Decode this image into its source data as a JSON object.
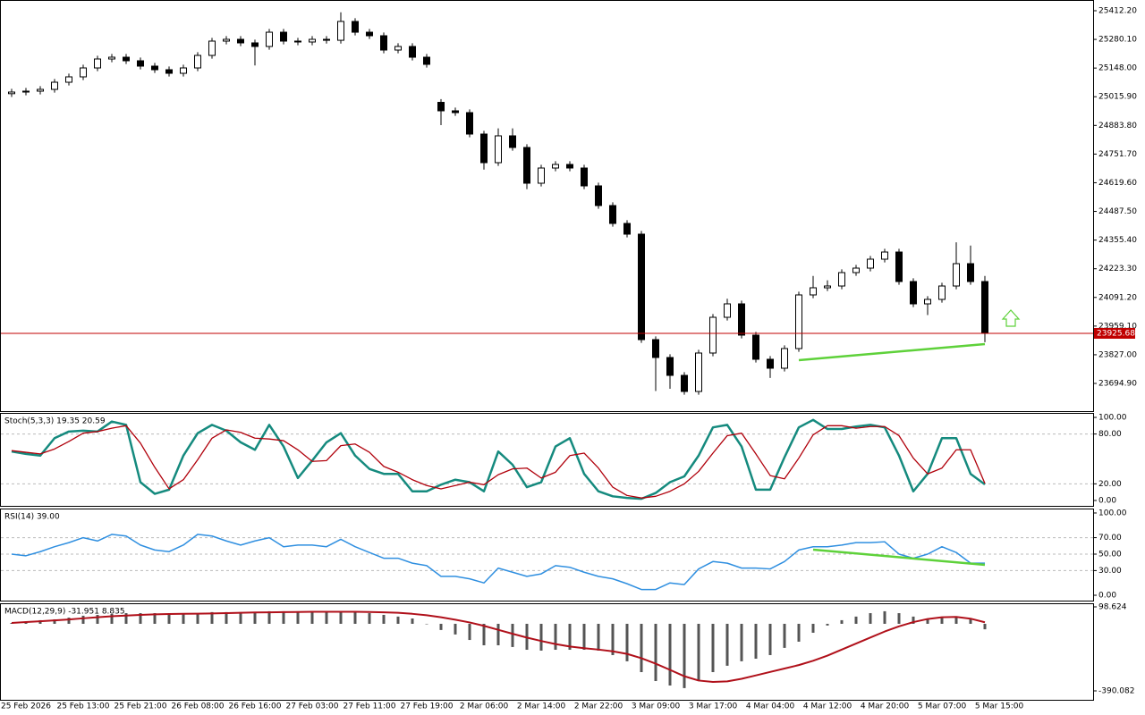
{
  "chart_data": [
    {
      "type": "candlestick",
      "open": [
        25030.0,
        25037.4,
        25041.6,
        25049.8,
        25082.7,
        25107.5,
        25148.6,
        25189.8,
        25198.0,
        25181.6,
        25156.9,
        25140.4,
        25123.9,
        25148.6,
        25206.3,
        25272.2,
        25280.4,
        25264.0,
        25247.5,
        25313.2,
        25272.2,
        25268.1,
        25280.4,
        25276.0,
        25362.8,
        25313.2,
        25296.9,
        25231.0,
        25247.5,
        25198.0,
        24990.0,
        24951.0,
        24942.7,
        24843.9,
        24712.1,
        24835.7,
        24782.1,
        24617.4,
        24687.4,
        24703.9,
        24687.4,
        24605.1,
        24514.5,
        24432.1,
        24382.7,
        23896.8,
        23814.4,
        23732.0,
        23657.9,
        23835.0,
        23999.7,
        24061.5,
        23917.4,
        23806.2,
        23765.0,
        23855.6,
        24102.7,
        24135.6,
        24143.8,
        24205.6,
        24226.2,
        24267.4,
        24300.3,
        24164.4,
        24061.5,
        24082.1,
        24143.8,
        24246.8,
        24164.4
      ],
      "high": [
        25052.4,
        25056.6,
        25064.8,
        25097.7,
        25122.5,
        25163.6,
        25204.8,
        25213.0,
        25213.0,
        25196.6,
        25171.9,
        25155.4,
        25163.6,
        25221.3,
        25287.2,
        25295.4,
        25295.4,
        25279.0,
        25328.2,
        25328.2,
        25287.2,
        25295.4,
        25295.4,
        25405.0,
        25377.8,
        25328.2,
        25311.9,
        25262.5,
        25262.5,
        25213.0,
        25005.0,
        24966.0,
        24957.7,
        24858.9,
        24870.0,
        24870.0,
        24797.1,
        24702.4,
        24718.9,
        24718.9,
        24702.4,
        24620.1,
        24529.5,
        24447.1,
        24397.7,
        23911.8,
        23829.4,
        23747.0,
        23850.0,
        24014.7,
        24085.0,
        24076.5,
        23932.4,
        23821.2,
        23870.6,
        24117.7,
        24190.0,
        24170.0,
        24220.6,
        24241.2,
        24282.4,
        24315.3,
        24315.3,
        24179.4,
        24097.1,
        24158.8,
        24345.0,
        24330.0,
        24190.0
      ],
      "low": [
        25015.0,
        25022.4,
        25026.6,
        25034.8,
        25067.7,
        25092.5,
        25133.6,
        25174.8,
        25166.6,
        25141.9,
        25125.4,
        25108.9,
        25108.9,
        25133.6,
        25191.3,
        25257.2,
        25249.0,
        25160.0,
        25232.5,
        25257.2,
        25253.1,
        25253.1,
        25261.0,
        25261.0,
        25298.2,
        25281.9,
        25216.0,
        25216.0,
        25183.0,
        25150.1,
        24885.0,
        24927.7,
        24828.9,
        24680.0,
        24697.1,
        24767.1,
        24590.0,
        24602.4,
        24672.4,
        24672.4,
        24590.1,
        24499.5,
        24417.1,
        24367.7,
        23881.8,
        23660.0,
        23670.0,
        23642.9,
        23642.9,
        23820.0,
        23984.7,
        23902.4,
        23791.2,
        23720.0,
        23750.0,
        23840.6,
        24087.7,
        24120.6,
        24128.8,
        24190.6,
        24211.2,
        24252.4,
        24149.4,
        24046.5,
        24010.0,
        24067.1,
        24128.8,
        24149.4,
        23885.0
      ],
      "close": [
        25037.4,
        25041.6,
        25049.8,
        25082.7,
        25107.5,
        25148.6,
        25189.8,
        25198.0,
        25181.6,
        25156.9,
        25140.4,
        25123.9,
        25148.6,
        25206.3,
        25272.2,
        25280.4,
        25264.0,
        25247.5,
        25313.2,
        25272.2,
        25268.1,
        25280.4,
        25276.0,
        25362.8,
        25313.2,
        25296.9,
        25231.0,
        25247.5,
        25198.0,
        25165.1,
        24951.0,
        24942.7,
        24843.9,
        24712.1,
        24835.7,
        24782.1,
        24617.4,
        24687.4,
        24703.9,
        24687.4,
        24605.1,
        24514.5,
        24432.1,
        24382.7,
        23896.8,
        23814.4,
        23732.0,
        23657.9,
        23835.0,
        23999.7,
        24061.5,
        23917.4,
        23806.2,
        23765.0,
        23855.6,
        24102.7,
        24135.6,
        24143.8,
        24205.6,
        24226.2,
        24267.4,
        24300.3,
        24164.4,
        24061.5,
        24082.1,
        24143.8,
        24246.8,
        24164.4,
        23925.68
      ],
      "up_color": "#ffffff",
      "down_color": "#000000",
      "ylim": [
        23567.3,
        25461.6
      ],
      "yticks": [
        {
          "value": 25412.2,
          "label": "25412.20"
        },
        {
          "value": 25280.1,
          "label": "25280.10"
        },
        {
          "value": 25148.0,
          "label": "25148.00"
        },
        {
          "value": 25015.9,
          "label": "25015.90"
        },
        {
          "value": 24883.8,
          "label": "24883.80"
        },
        {
          "value": 24751.7,
          "label": "24751.70"
        },
        {
          "value": 24619.6,
          "label": "24619.60"
        },
        {
          "value": 24487.5,
          "label": "24487.50"
        },
        {
          "value": 24355.4,
          "label": "24355.40"
        },
        {
          "value": 24223.3,
          "label": "24223.30"
        },
        {
          "value": 24091.2,
          "label": "24091.20"
        },
        {
          "value": 23959.1,
          "label": "23959.10"
        },
        {
          "value": 23827.0,
          "label": "23827.00"
        },
        {
          "value": 23694.9,
          "label": "23694.90"
        }
      ],
      "price_line": {
        "value": 23925.68,
        "label": "23925.68",
        "color": "#c00000"
      },
      "trend_line": {
        "x": [
          55,
          68
        ],
        "values": [
          23802,
          23876
        ],
        "color": "#5ed13a"
      }
    },
    {
      "type": "line",
      "title": "Stoch(5,3,3) 19.35 20.59",
      "series": [
        {
          "color": "#158a7e",
          "width": 2.5,
          "values": [
            59,
            56,
            54,
            75,
            83,
            84,
            83,
            95,
            91,
            22,
            8,
            13,
            54,
            81,
            91,
            84,
            70,
            61,
            91,
            65,
            27,
            48,
            70,
            81,
            54,
            38,
            32,
            32,
            11,
            11,
            19,
            25,
            22,
            11,
            59,
            43,
            16,
            22,
            65,
            75,
            32,
            11,
            5,
            3,
            2,
            9,
            22,
            29,
            54,
            88,
            91,
            65,
            13,
            13,
            52,
            88,
            97,
            86,
            86,
            89,
            91,
            88,
            54,
            11,
            32,
            75,
            75,
            32,
            19.35
          ]
        },
        {
          "color": "#b0000b",
          "width": 1.3,
          "values": [
            60,
            58,
            56,
            62,
            71,
            81,
            83,
            87,
            90,
            69,
            40,
            14,
            25,
            49,
            75,
            85,
            82,
            75,
            74,
            72,
            61,
            47,
            48,
            66,
            68,
            58,
            41,
            34,
            25,
            18,
            14,
            18,
            22,
            19,
            31,
            38,
            39,
            27,
            34,
            54,
            57,
            39,
            16,
            6,
            3,
            5,
            11,
            20,
            35,
            57,
            78,
            81,
            56,
            30,
            26,
            51,
            79,
            90,
            90,
            87,
            89,
            89,
            78,
            51,
            32,
            39,
            61,
            61,
            20.59
          ]
        }
      ],
      "ylim": [
        -6.5,
        105.4
      ],
      "yticks": [
        {
          "value": 100,
          "label": "100.00"
        },
        {
          "value": 80,
          "label": "80.00"
        },
        {
          "value": 20,
          "label": "20.00"
        },
        {
          "value": 0,
          "label": "0.00"
        }
      ],
      "grid": "inner"
    },
    {
      "type": "line",
      "title": "RSI(14) 39.00",
      "series": [
        {
          "color": "#2f8fe0",
          "width": 1.5,
          "values": [
            50,
            48,
            53,
            59,
            64,
            70,
            66,
            74,
            72,
            61,
            55,
            53,
            61,
            74,
            72,
            66,
            61,
            66,
            70,
            59,
            61,
            61,
            59,
            68,
            59,
            52,
            45,
            45,
            39,
            36,
            23,
            23,
            20,
            15,
            33,
            28,
            23,
            26,
            36,
            34,
            28,
            23,
            20,
            14,
            7,
            7,
            15,
            13,
            32,
            41,
            39,
            33,
            33,
            32,
            41,
            55,
            59,
            59,
            61,
            64,
            64,
            65,
            50,
            45,
            50,
            59,
            52,
            39,
            39.0
          ]
        }
      ],
      "ylim": [
        -6.5,
        105.4
      ],
      "yticks": [
        {
          "value": 100,
          "label": "100.00"
        },
        {
          "value": 70,
          "label": "70.00"
        },
        {
          "value": 50,
          "label": "50.00"
        },
        {
          "value": 30,
          "label": "30.00"
        },
        {
          "value": 0,
          "label": "0.00"
        }
      ],
      "grid": "inner",
      "trend_line": {
        "x": [
          56,
          68
        ],
        "values": [
          55.4,
          37
        ],
        "color": "#5ed13a"
      }
    },
    {
      "type": "bar",
      "title": "MACD(12,29,9) -31.951 8.835",
      "color": "#555555",
      "values": [
        5,
        10,
        21,
        26,
        36,
        47,
        52,
        57,
        62,
        62,
        62,
        57,
        57,
        62,
        68,
        68,
        68,
        68,
        73,
        73,
        73,
        73,
        73,
        73,
        68,
        62,
        52,
        42,
        31,
        0,
        -36,
        -62,
        -94,
        -125,
        -125,
        -135,
        -151,
        -156,
        -151,
        -151,
        -151,
        -156,
        -182,
        -218,
        -281,
        -333,
        -359,
        -374,
        -333,
        -281,
        -244,
        -218,
        -203,
        -182,
        -140,
        -104,
        -52,
        -10,
        21,
        42,
        62,
        73,
        62,
        42,
        31,
        36,
        42,
        26,
        -31.951
      ],
      "series": [
        {
          "color": "#b0101a",
          "width": 2,
          "values": [
            5,
            10,
            15,
            20,
            25,
            32,
            38,
            44,
            48,
            52,
            55,
            57,
            58,
            59,
            60,
            62,
            64,
            66,
            67,
            68,
            69,
            70,
            70,
            70,
            70,
            69,
            67,
            64,
            58,
            50,
            38,
            24,
            8,
            -12,
            -35,
            -58,
            -80,
            -100,
            -118,
            -132,
            -142,
            -150,
            -160,
            -175,
            -200,
            -232,
            -268,
            -305,
            -330,
            -338,
            -335,
            -320,
            -300,
            -280,
            -260,
            -240,
            -215,
            -185,
            -150,
            -115,
            -80,
            -45,
            -15,
            10,
            28,
            38,
            40,
            30,
            8.835
          ]
        }
      ],
      "ylim": [
        -442.1,
        119.4
      ],
      "yticks": [
        {
          "value": 98.624,
          "label": "98.624"
        },
        {
          "value": -390.082,
          "label": "-390.082"
        }
      ]
    }
  ],
  "time_axis": {
    "labels": [
      "25 Feb 2026",
      "25 Feb 13:00",
      "25 Feb 21:00",
      "26 Feb 08:00",
      "26 Feb 16:00",
      "27 Feb 03:00",
      "27 Feb 11:00",
      "27 Feb 19:00",
      "2 Mar 06:00",
      "2 Mar 14:00",
      "2 Mar 22:00",
      "3 Mar 09:00",
      "3 Mar 17:00",
      "4 Mar 04:00",
      "4 Mar 12:00",
      "4 Mar 20:00",
      "5 Mar 07:00",
      "5 Mar 15:00"
    ]
  }
}
